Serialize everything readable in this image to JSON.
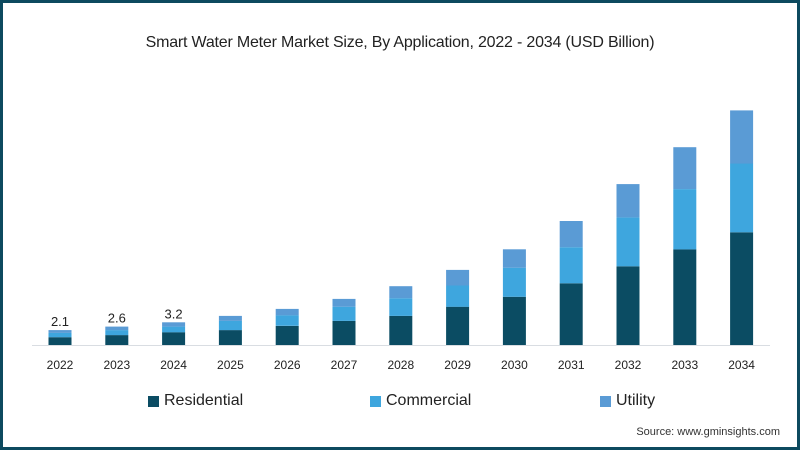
{
  "chart_data": {
    "type": "bar",
    "stacked": true,
    "title": "Smart Water Meter Market Size, By Application, 2022 - 2034 (USD Billion)",
    "xlabel": "",
    "ylabel": "",
    "categories": [
      "2022",
      "2023",
      "2024",
      "2025",
      "2026",
      "2027",
      "2028",
      "2029",
      "2030",
      "2031",
      "2032",
      "2033",
      "2034"
    ],
    "series": [
      {
        "name": "Residential",
        "color": "#0b4c63",
        "values": [
          1.1,
          1.4,
          1.8,
          2.1,
          2.7,
          3.4,
          4.1,
          5.4,
          6.8,
          8.7,
          11.1,
          13.5,
          15.9
        ]
      },
      {
        "name": "Commercial",
        "color": "#3ea6de",
        "values": [
          0.6,
          0.7,
          0.8,
          1.3,
          1.5,
          2.0,
          2.5,
          3.0,
          4.1,
          5.1,
          6.9,
          8.5,
          9.7
        ]
      },
      {
        "name": "Utility",
        "color": "#5a9bd5",
        "values": [
          0.4,
          0.5,
          0.6,
          0.7,
          0.9,
          1.1,
          1.7,
          2.2,
          2.6,
          3.7,
          4.7,
          5.9,
          7.5
        ]
      }
    ],
    "data_labels": [
      {
        "category": "2022",
        "text": "2.1"
      },
      {
        "category": "2023",
        "text": "2.6"
      },
      {
        "category": "2024",
        "text": "3.2"
      }
    ],
    "ylim": [
      0,
      34
    ],
    "grid": false,
    "y_axis_visible": false,
    "legend_position": "bottom"
  },
  "legend": {
    "items": [
      {
        "label": "Residential",
        "color": "#0b4c63"
      },
      {
        "label": "Commercial",
        "color": "#3ea6de"
      },
      {
        "label": "Utility",
        "color": "#5a9bd5"
      }
    ]
  },
  "source": "Source: www.gminsights.com"
}
